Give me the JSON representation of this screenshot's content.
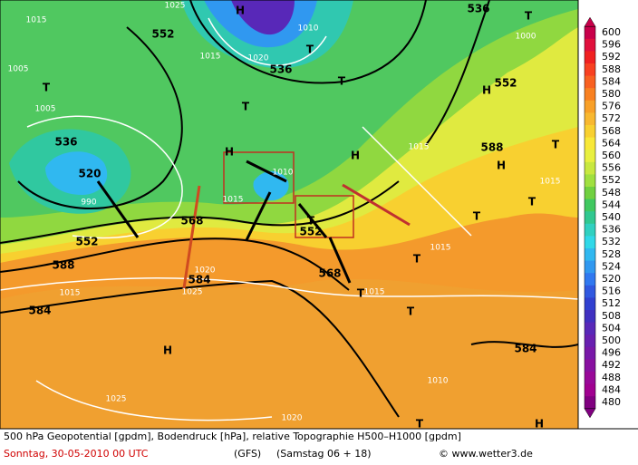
{
  "footer": {
    "description": "500 hPa Geopotential [gpdm], Bodendruck [hPa], relative Topographie H500–H1000 [gpdm]",
    "date": "Sonntag, 30-05-2010  00 UTC",
    "model": "(GFS)",
    "run": "(Samstag 06 + 18)",
    "copyright": "© www.wetter3.de"
  },
  "color_scale": {
    "levels": [
      600,
      596,
      592,
      588,
      584,
      580,
      576,
      572,
      568,
      564,
      560,
      556,
      552,
      548,
      544,
      540,
      536,
      532,
      528,
      524,
      520,
      516,
      512,
      508,
      504,
      500,
      496,
      492,
      488,
      484,
      480
    ],
    "colors": [
      "#c8004a",
      "#e0103c",
      "#f02020",
      "#f84020",
      "#f86020",
      "#f88020",
      "#f8a028",
      "#f8b830",
      "#f8d030",
      "#f8e838",
      "#e8f040",
      "#c8e840",
      "#a0e040",
      "#70d040",
      "#40c860",
      "#30c890",
      "#30d0c0",
      "#30d8e8",
      "#30b8f0",
      "#3098f0",
      "#3078f0",
      "#3058e0",
      "#3040d0",
      "#4030c0",
      "#5828b8",
      "#6820b0",
      "#7818a8",
      "#8810a0",
      "#980898",
      "#a00090",
      "#800080"
    ]
  },
  "map_labels": [
    "H",
    "T",
    "536",
    "552",
    "536",
    "T",
    "1010",
    "1020",
    "1015",
    "T",
    "1005",
    "T",
    "552",
    "H",
    "T",
    "1000",
    "536",
    "520",
    "990",
    "H",
    "1010",
    "1015",
    "H",
    "588",
    "H",
    "1015",
    "T",
    "1015",
    "T",
    "T",
    "552",
    "568",
    "552",
    "T",
    "588",
    "1015",
    "T",
    "568",
    "T",
    "1015",
    "584",
    "1025",
    "1020",
    "584",
    "1015",
    "H",
    "1025",
    "1020",
    "1010",
    "584",
    "T",
    "H",
    "T",
    "1005",
    "1015",
    "1025"
  ]
}
